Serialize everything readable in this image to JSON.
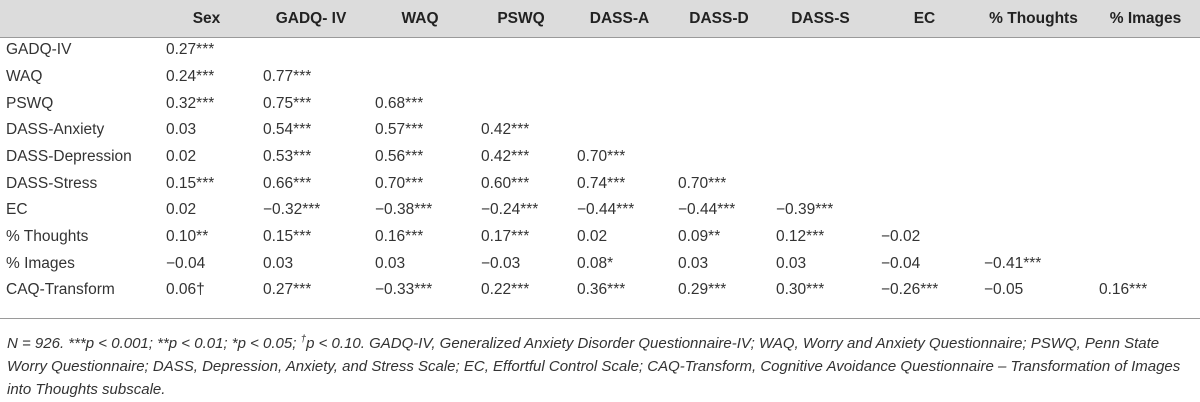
{
  "table": {
    "columns": [
      "",
      "Sex",
      "GADQ- IV",
      "WAQ",
      "PSWQ",
      "DASS-A",
      "DASS-D",
      "DASS-S",
      "EC",
      "% Thoughts",
      "% Images"
    ],
    "rows": [
      {
        "label": "GADQ-IV",
        "values": [
          "0.27***",
          "",
          "",
          "",
          "",
          "",
          "",
          "",
          "",
          ""
        ]
      },
      {
        "label": "WAQ",
        "values": [
          "0.24***",
          "0.77***",
          "",
          "",
          "",
          "",
          "",
          "",
          "",
          ""
        ]
      },
      {
        "label": "PSWQ",
        "values": [
          "0.32***",
          "0.75***",
          "0.68***",
          "",
          "",
          "",
          "",
          "",
          "",
          ""
        ]
      },
      {
        "label": "DASS-Anxiety",
        "values": [
          "0.03",
          "0.54***",
          "0.57***",
          "0.42***",
          "",
          "",
          "",
          "",
          "",
          ""
        ]
      },
      {
        "label": "DASS-Depression",
        "values": [
          "0.02",
          "0.53***",
          "0.56***",
          "0.42***",
          "0.70***",
          "",
          "",
          "",
          "",
          ""
        ]
      },
      {
        "label": "DASS-Stress",
        "values": [
          "0.15***",
          "0.66***",
          "0.70***",
          "0.60***",
          "0.74***",
          "0.70***",
          "",
          "",
          "",
          ""
        ]
      },
      {
        "label": "EC",
        "values": [
          "0.02",
          "−0.32***",
          "−0.38***",
          "−0.24***",
          "−0.44***",
          "−0.44***",
          "−0.39***",
          "",
          "",
          ""
        ]
      },
      {
        "label": "% Thoughts",
        "values": [
          "0.10**",
          "0.15***",
          "0.16***",
          "0.17***",
          "0.02",
          "0.09**",
          "0.12***",
          "−0.02",
          "",
          ""
        ]
      },
      {
        "label": "% Images",
        "values": [
          "−0.04",
          "0.03",
          "0.03",
          "−0.03",
          "0.08*",
          "0.03",
          "0.03",
          "−0.04",
          "−0.41***",
          ""
        ]
      },
      {
        "label": "CAQ-Transform",
        "values": [
          "0.06†",
          "0.27***",
          "−0.33***",
          "0.22***",
          "0.36***",
          "0.29***",
          "0.30***",
          "−0.26***",
          "−0.05",
          "0.16***"
        ]
      }
    ]
  },
  "note": {
    "part1": "N = 926. ***p < 0.001; **p < 0.01; *p < 0.05; ",
    "dagger": "†",
    "part2": "p < 0.10. GADQ-IV, Generalized Anxiety Disorder Questionnaire-IV; WAQ, Worry and Anxiety Questionnaire; PSWQ, Penn State Worry Questionnaire; DASS, Depression, Anxiety, and Stress Scale; EC, Effortful Control Scale; CAQ-Transform, Cognitive Avoidance Questionnaire – Transformation of Images into Thoughts subscale."
  }
}
